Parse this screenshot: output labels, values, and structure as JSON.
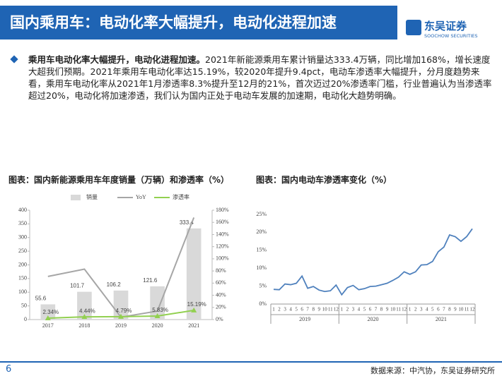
{
  "header": {
    "title": "国内乘用车：电动化率大幅提升，电动化进程加速",
    "logo": "东吴证券",
    "logo_en": "SOOCHOW SECURITIES"
  },
  "bullet": {
    "bold": "乘用车电动化率大幅提升，电动化进程加速。",
    "text": "2021年新能源乘用车累计销量达333.4万辆，同比增加168%，增长速度大超我们预期。2021年乘用车电动化率达15.19%，较2020年提升9.4pct，电动车渗透率大幅提升，分月度趋势来看，乘用车电动化率从2021年1月渗透率8.3%提升至12月的21%，首次迈过20%渗透率门槛，行业普遍认为当渗透率超过20%，电动化将加速渗透，我们认为国内正处于电动车发展的加速期，电动化大趋势明确。"
  },
  "footer": {
    "page": "6",
    "source": "数据来源：中汽协，东吴证券研究所"
  },
  "chart_data": [
    {
      "type": "bar",
      "title": "图表：国内新能源乘用车年度销量（万辆）和渗透率（%）",
      "categories": [
        "2017",
        "2018",
        "2019",
        "2020",
        "2021"
      ],
      "series": [
        {
          "name": "销量",
          "type": "bar",
          "color": "#d9d9d9",
          "values": [
            55.6,
            101.7,
            106.2,
            121.6,
            333.4
          ]
        },
        {
          "name": "YoY",
          "type": "line",
          "axis": "y2",
          "color": "#a6a6a6",
          "values": [
            71,
            83,
            4,
            14,
            168
          ]
        },
        {
          "name": "渗透率",
          "type": "line",
          "axis": "y2",
          "color": "#92d050",
          "values": [
            2.34,
            4.44,
            4.79,
            5.83,
            15.19
          ],
          "value_labels": [
            "2.34%",
            "4.44%",
            "4.79%",
            "5.83%",
            "15.19%"
          ]
        }
      ],
      "ylim": [
        0,
        400
      ],
      "yticks": [
        0,
        50,
        100,
        150,
        200,
        250,
        300,
        350,
        400
      ],
      "y2lim": [
        0,
        180
      ],
      "y2ticks": [
        {
          "value": 0,
          "label": "0%"
        },
        {
          "value": 20,
          "label": "20%"
        },
        {
          "value": 40,
          "label": "40%"
        },
        {
          "value": 60,
          "label": "60%"
        },
        {
          "value": 80,
          "label": "80%"
        },
        {
          "value": 100,
          "label": "100%"
        },
        {
          "value": 120,
          "label": "120%"
        },
        {
          "value": 140,
          "label": "140%"
        },
        {
          "value": 160,
          "label": "160%"
        },
        {
          "value": 180,
          "label": "180%"
        }
      ],
      "legend": "top"
    },
    {
      "type": "line",
      "title": "图表：国内电动车渗透率变化（%）",
      "categories": [
        "1",
        "2",
        "3",
        "4",
        "5",
        "6",
        "7",
        "8",
        "9",
        "10",
        "11",
        "12",
        "1",
        "2",
        "3",
        "4",
        "5",
        "6",
        "7",
        "8",
        "9",
        "10",
        "11",
        "12",
        "1",
        "2",
        "3",
        "4",
        "5",
        "6",
        "7",
        "8",
        "9",
        "10",
        "11",
        "12"
      ],
      "x_groups": [
        "2019",
        "2020",
        "2021"
      ],
      "series": [
        {
          "name": "渗透率",
          "color": "#4f81bd",
          "values": [
            4.1,
            4.0,
            5.6,
            5.4,
            5.8,
            7.8,
            4.4,
            4.9,
            3.9,
            3.5,
            3.7,
            5.3,
            2.6,
            4.6,
            5.2,
            4.0,
            4.3,
            4.9,
            5.0,
            5.4,
            5.8,
            6.6,
            7.5,
            9.0,
            8.3,
            9.0,
            10.9,
            11.0,
            11.9,
            14.6,
            15.9,
            19.3,
            18.8,
            17.5,
            18.8,
            21.0
          ]
        }
      ],
      "ylim": [
        0,
        25
      ],
      "yticks": [
        {
          "value": 0,
          "label": "0%"
        },
        {
          "value": 5,
          "label": "5%"
        },
        {
          "value": 10,
          "label": "10%"
        },
        {
          "value": 15,
          "label": "15%"
        },
        {
          "value": 20,
          "label": "20%"
        },
        {
          "value": 25,
          "label": "25%"
        }
      ]
    }
  ]
}
